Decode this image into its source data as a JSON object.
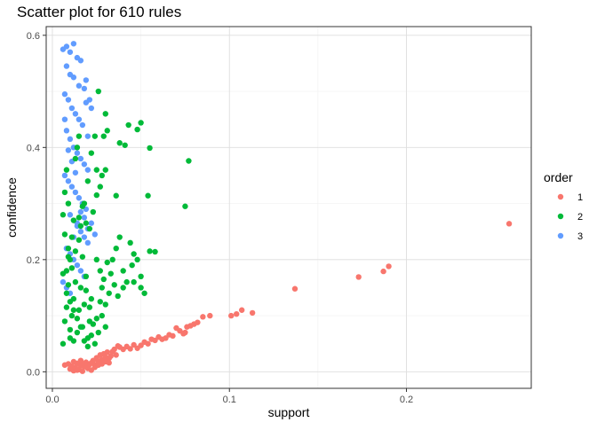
{
  "chart_data": {
    "type": "scatter",
    "title": "Scatter plot for 610 rules",
    "xlabel": "support",
    "ylabel": "confidence",
    "xlim": [
      -0.0035,
      0.2705
    ],
    "ylim": [
      -0.0295,
      0.6155
    ],
    "x_ticks": [
      0.0,
      0.1,
      0.2
    ],
    "x_tick_labels": [
      "0.0",
      "0.1",
      "0.2"
    ],
    "y_ticks": [
      0.0,
      0.2,
      0.4,
      0.6
    ],
    "y_tick_labels": [
      "0.0",
      "0.2",
      "0.4",
      "0.6"
    ],
    "grid": true,
    "legend": {
      "title": "order",
      "position": "right",
      "entries": [
        {
          "label": "1",
          "color": "#F8766D"
        },
        {
          "label": "2",
          "color": "#00BA38"
        },
        {
          "label": "3",
          "color": "#619CFF"
        }
      ]
    },
    "series": [
      {
        "name": "1",
        "color": "#F8766D",
        "points": [
          [
            0.007,
            0.012
          ],
          [
            0.009,
            0.014
          ],
          [
            0.01,
            0.005
          ],
          [
            0.011,
            0.01
          ],
          [
            0.012,
            0.002
          ],
          [
            0.013,
            0.008
          ],
          [
            0.014,
            0.015
          ],
          [
            0.015,
            0.004
          ],
          [
            0.016,
            0.011
          ],
          [
            0.017,
            0.001
          ],
          [
            0.018,
            0.009
          ],
          [
            0.019,
            0.017
          ],
          [
            0.02,
            0.006
          ],
          [
            0.021,
            0.013
          ],
          [
            0.022,
            0.003
          ],
          [
            0.023,
            0.02
          ],
          [
            0.024,
            0.012
          ],
          [
            0.025,
            0.025
          ],
          [
            0.026,
            0.018
          ],
          [
            0.027,
            0.03
          ],
          [
            0.028,
            0.022
          ],
          [
            0.029,
            0.032
          ],
          [
            0.03,
            0.026
          ],
          [
            0.031,
            0.035
          ],
          [
            0.032,
            0.024
          ],
          [
            0.033,
            0.028
          ],
          [
            0.034,
            0.036
          ],
          [
            0.035,
            0.04
          ],
          [
            0.036,
            0.03
          ],
          [
            0.037,
            0.046
          ],
          [
            0.038,
            0.044
          ],
          [
            0.04,
            0.04
          ],
          [
            0.042,
            0.045
          ],
          [
            0.044,
            0.041
          ],
          [
            0.046,
            0.048
          ],
          [
            0.048,
            0.042
          ],
          [
            0.05,
            0.047
          ],
          [
            0.052,
            0.053
          ],
          [
            0.054,
            0.05
          ],
          [
            0.056,
            0.058
          ],
          [
            0.058,
            0.056
          ],
          [
            0.06,
            0.062
          ],
          [
            0.062,
            0.058
          ],
          [
            0.064,
            0.06
          ],
          [
            0.066,
            0.066
          ],
          [
            0.068,
            0.064
          ],
          [
            0.07,
            0.078
          ],
          [
            0.072,
            0.073
          ],
          [
            0.074,
            0.068
          ],
          [
            0.075,
            0.07
          ],
          [
            0.076,
            0.08
          ],
          [
            0.078,
            0.082
          ],
          [
            0.08,
            0.085
          ],
          [
            0.082,
            0.088
          ],
          [
            0.085,
            0.098
          ],
          [
            0.089,
            0.1
          ],
          [
            0.101,
            0.1
          ],
          [
            0.104,
            0.103
          ],
          [
            0.107,
            0.11
          ],
          [
            0.113,
            0.105
          ],
          [
            0.137,
            0.148
          ],
          [
            0.173,
            0.169
          ],
          [
            0.187,
            0.179
          ],
          [
            0.19,
            0.188
          ],
          [
            0.258,
            0.264
          ],
          [
            0.012,
            0.018
          ],
          [
            0.014,
            0.003
          ],
          [
            0.016,
            0.02
          ],
          [
            0.018,
            0.014
          ],
          [
            0.02,
            0.01
          ],
          [
            0.022,
            0.016
          ],
          [
            0.024,
            0.008
          ],
          [
            0.026,
            0.012
          ],
          [
            0.028,
            0.014
          ],
          [
            0.03,
            0.018
          ],
          [
            0.032,
            0.016
          ]
        ]
      },
      {
        "name": "2",
        "color": "#00BA38",
        "points": [
          [
            0.006,
            0.05
          ],
          [
            0.007,
            0.09
          ],
          [
            0.008,
            0.14
          ],
          [
            0.008,
            0.18
          ],
          [
            0.009,
            0.22
          ],
          [
            0.006,
            0.28
          ],
          [
            0.007,
            0.32
          ],
          [
            0.008,
            0.36
          ],
          [
            0.009,
            0.3
          ],
          [
            0.01,
            0.06
          ],
          [
            0.011,
            0.1
          ],
          [
            0.012,
            0.13
          ],
          [
            0.013,
            0.16
          ],
          [
            0.01,
            0.2
          ],
          [
            0.011,
            0.24
          ],
          [
            0.012,
            0.27
          ],
          [
            0.013,
            0.38
          ],
          [
            0.014,
            0.4
          ],
          [
            0.015,
            0.42
          ],
          [
            0.014,
            0.07
          ],
          [
            0.015,
            0.11
          ],
          [
            0.016,
            0.15
          ],
          [
            0.017,
            0.08
          ],
          [
            0.018,
            0.12
          ],
          [
            0.019,
            0.17
          ],
          [
            0.02,
            0.06
          ],
          [
            0.021,
            0.09
          ],
          [
            0.022,
            0.13
          ],
          [
            0.016,
            0.26
          ],
          [
            0.018,
            0.3
          ],
          [
            0.02,
            0.34
          ],
          [
            0.022,
            0.39
          ],
          [
            0.024,
            0.42
          ],
          [
            0.026,
            0.5
          ],
          [
            0.025,
            0.36
          ],
          [
            0.027,
            0.33
          ],
          [
            0.028,
            0.35
          ],
          [
            0.03,
            0.36
          ],
          [
            0.029,
            0.42
          ],
          [
            0.031,
            0.43
          ],
          [
            0.03,
            0.46
          ],
          [
            0.025,
            0.2
          ],
          [
            0.027,
            0.18
          ],
          [
            0.028,
            0.15
          ],
          [
            0.03,
            0.12
          ],
          [
            0.032,
            0.14
          ],
          [
            0.034,
            0.2
          ],
          [
            0.036,
            0.22
          ],
          [
            0.038,
            0.24
          ],
          [
            0.04,
            0.18
          ],
          [
            0.042,
            0.16
          ],
          [
            0.044,
            0.23
          ],
          [
            0.045,
            0.19
          ],
          [
            0.046,
            0.21
          ],
          [
            0.048,
            0.2
          ],
          [
            0.05,
            0.17
          ],
          [
            0.055,
            0.215
          ],
          [
            0.058,
            0.214
          ],
          [
            0.036,
            0.314
          ],
          [
            0.038,
            0.408
          ],
          [
            0.041,
            0.404
          ],
          [
            0.043,
            0.44
          ],
          [
            0.048,
            0.432
          ],
          [
            0.05,
            0.444
          ],
          [
            0.054,
            0.314
          ],
          [
            0.055,
            0.399
          ],
          [
            0.075,
            0.295
          ],
          [
            0.077,
            0.376
          ],
          [
            0.04,
            0.15
          ],
          [
            0.046,
            0.16
          ],
          [
            0.05,
            0.15
          ],
          [
            0.052,
            0.14
          ],
          [
            0.028,
            0.1
          ],
          [
            0.03,
            0.08
          ],
          [
            0.026,
            0.07
          ],
          [
            0.024,
            0.05
          ],
          [
            0.022,
            0.065
          ],
          [
            0.02,
            0.045
          ],
          [
            0.018,
            0.055
          ],
          [
            0.016,
            0.08
          ],
          [
            0.014,
            0.095
          ],
          [
            0.012,
            0.11
          ],
          [
            0.01,
            0.125
          ],
          [
            0.009,
            0.155
          ],
          [
            0.011,
            0.185
          ],
          [
            0.013,
            0.215
          ],
          [
            0.015,
            0.235
          ],
          [
            0.017,
            0.205
          ],
          [
            0.019,
            0.145
          ],
          [
            0.021,
            0.115
          ],
          [
            0.023,
            0.085
          ],
          [
            0.025,
            0.095
          ],
          [
            0.027,
            0.125
          ],
          [
            0.029,
            0.165
          ],
          [
            0.031,
            0.195
          ],
          [
            0.033,
            0.175
          ],
          [
            0.035,
            0.155
          ],
          [
            0.037,
            0.135
          ],
          [
            0.015,
            0.275
          ],
          [
            0.017,
            0.295
          ],
          [
            0.019,
            0.265
          ],
          [
            0.021,
            0.255
          ],
          [
            0.023,
            0.285
          ],
          [
            0.025,
            0.315
          ],
          [
            0.007,
            0.245
          ],
          [
            0.009,
            0.205
          ],
          [
            0.006,
            0.175
          ],
          [
            0.008,
            0.115
          ],
          [
            0.01,
            0.075
          ],
          [
            0.012,
            0.055
          ]
        ]
      },
      {
        "name": "3",
        "color": "#619CFF",
        "points": [
          [
            0.006,
            0.575
          ],
          [
            0.008,
            0.58
          ],
          [
            0.01,
            0.57
          ],
          [
            0.012,
            0.585
          ],
          [
            0.014,
            0.56
          ],
          [
            0.016,
            0.555
          ],
          [
            0.008,
            0.545
          ],
          [
            0.01,
            0.53
          ],
          [
            0.012,
            0.525
          ],
          [
            0.015,
            0.51
          ],
          [
            0.018,
            0.505
          ],
          [
            0.007,
            0.495
          ],
          [
            0.009,
            0.485
          ],
          [
            0.011,
            0.47
          ],
          [
            0.013,
            0.46
          ],
          [
            0.015,
            0.45
          ],
          [
            0.017,
            0.44
          ],
          [
            0.019,
            0.48
          ],
          [
            0.021,
            0.485
          ],
          [
            0.008,
            0.43
          ],
          [
            0.01,
            0.415
          ],
          [
            0.012,
            0.4
          ],
          [
            0.014,
            0.39
          ],
          [
            0.016,
            0.38
          ],
          [
            0.018,
            0.37
          ],
          [
            0.02,
            0.36
          ],
          [
            0.007,
            0.35
          ],
          [
            0.009,
            0.34
          ],
          [
            0.011,
            0.33
          ],
          [
            0.013,
            0.32
          ],
          [
            0.015,
            0.31
          ],
          [
            0.017,
            0.3
          ],
          [
            0.019,
            0.29
          ],
          [
            0.01,
            0.28
          ],
          [
            0.012,
            0.27
          ],
          [
            0.014,
            0.26
          ],
          [
            0.016,
            0.25
          ],
          [
            0.018,
            0.24
          ],
          [
            0.02,
            0.23
          ],
          [
            0.008,
            0.22
          ],
          [
            0.01,
            0.21
          ],
          [
            0.012,
            0.2
          ],
          [
            0.014,
            0.19
          ],
          [
            0.016,
            0.18
          ],
          [
            0.018,
            0.17
          ],
          [
            0.006,
            0.16
          ],
          [
            0.008,
            0.15
          ],
          [
            0.01,
            0.14
          ],
          [
            0.012,
            0.24
          ],
          [
            0.014,
            0.265
          ],
          [
            0.016,
            0.285
          ],
          [
            0.018,
            0.275
          ],
          [
            0.02,
            0.255
          ],
          [
            0.022,
            0.265
          ],
          [
            0.024,
            0.245
          ],
          [
            0.011,
            0.375
          ],
          [
            0.013,
            0.355
          ],
          [
            0.009,
            0.395
          ],
          [
            0.007,
            0.45
          ],
          [
            0.019,
            0.52
          ],
          [
            0.02,
            0.42
          ],
          [
            0.022,
            0.47
          ]
        ]
      }
    ]
  }
}
